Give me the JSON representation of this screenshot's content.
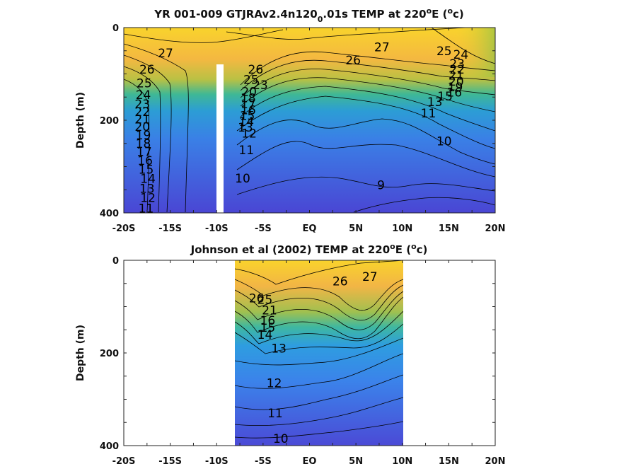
{
  "chart_data": [
    {
      "type": "contour",
      "title": "YR 001-009 GTJRAv2.4n120",
      "title_subscript": "0",
      "title_rest": ".01s TEMP at 220",
      "title_sup": "o",
      "title_end": "E (",
      "title_unit_sup": "o",
      "title_unit": "c)",
      "ylabel": "Depth (m)",
      "x_ticks": [
        "-20S",
        "-15S",
        "-10S",
        "-5S",
        "EQ",
        "5N",
        "10N",
        "15N",
        "20N"
      ],
      "y_ticks": [
        "0",
        "200",
        "400"
      ],
      "xlim": [
        -20,
        20
      ],
      "ylim": [
        0,
        400
      ],
      "y_reversed": true,
      "data_gap": {
        "lat": -9.7,
        "depth_from": 80,
        "depth_to": 400
      },
      "contour_labels": [
        {
          "text": "27",
          "lat": -15.5,
          "depth": 55
        },
        {
          "text": "26",
          "lat": -17.5,
          "depth": 90
        },
        {
          "text": "25",
          "lat": -17.8,
          "depth": 120
        },
        {
          "text": "24",
          "lat": -17.9,
          "depth": 145
        },
        {
          "text": "23",
          "lat": -18,
          "depth": 165
        },
        {
          "text": "22",
          "lat": -18,
          "depth": 182
        },
        {
          "text": "21",
          "lat": -18,
          "depth": 198
        },
        {
          "text": "20",
          "lat": -18,
          "depth": 214
        },
        {
          "text": "19",
          "lat": -17.9,
          "depth": 232
        },
        {
          "text": "18",
          "lat": -17.9,
          "depth": 250
        },
        {
          "text": "17",
          "lat": -17.8,
          "depth": 268
        },
        {
          "text": "16",
          "lat": -17.7,
          "depth": 287
        },
        {
          "text": "15",
          "lat": -17.6,
          "depth": 306
        },
        {
          "text": "14",
          "lat": -17.4,
          "depth": 326
        },
        {
          "text": "13",
          "lat": -17.5,
          "depth": 347
        },
        {
          "text": "12",
          "lat": -17.4,
          "depth": 367
        },
        {
          "text": "11",
          "lat": -17.6,
          "depth": 390
        },
        {
          "text": "26",
          "lat": -5.8,
          "depth": 90
        },
        {
          "text": "25",
          "lat": -6.3,
          "depth": 112
        },
        {
          "text": "23",
          "lat": -5.3,
          "depth": 124
        },
        {
          "text": "20",
          "lat": -6.5,
          "depth": 138
        },
        {
          "text": "18",
          "lat": -6.6,
          "depth": 152
        },
        {
          "text": "17",
          "lat": -6.6,
          "depth": 165
        },
        {
          "text": "16",
          "lat": -6.6,
          "depth": 178
        },
        {
          "text": "15",
          "lat": -6.7,
          "depth": 190
        },
        {
          "text": "14",
          "lat": -6.8,
          "depth": 203
        },
        {
          "text": "13",
          "lat": -6.9,
          "depth": 215
        },
        {
          "text": "12",
          "lat": -6.5,
          "depth": 228
        },
        {
          "text": "11",
          "lat": -6.8,
          "depth": 264
        },
        {
          "text": "10",
          "lat": -7.2,
          "depth": 325
        },
        {
          "text": "27",
          "lat": 7.8,
          "depth": 42
        },
        {
          "text": "26",
          "lat": 4.7,
          "depth": 70
        },
        {
          "text": "25",
          "lat": 14.5,
          "depth": 50
        },
        {
          "text": "24",
          "lat": 16.3,
          "depth": 58
        },
        {
          "text": "23",
          "lat": 15.9,
          "depth": 78
        },
        {
          "text": "22",
          "lat": 15.9,
          "depth": 90
        },
        {
          "text": "21",
          "lat": 15.8,
          "depth": 103
        },
        {
          "text": "20",
          "lat": 15.8,
          "depth": 116
        },
        {
          "text": "19",
          "lat": 15.7,
          "depth": 128
        },
        {
          "text": "16",
          "lat": 15.6,
          "depth": 140
        },
        {
          "text": "15",
          "lat": 14.6,
          "depth": 148
        },
        {
          "text": "13",
          "lat": 13.5,
          "depth": 160
        },
        {
          "text": "11",
          "lat": 12.8,
          "depth": 185
        },
        {
          "text": "10",
          "lat": 14.5,
          "depth": 245
        },
        {
          "text": "9",
          "lat": 7.7,
          "depth": 340
        }
      ]
    },
    {
      "type": "contour",
      "title": "Johnson et al (2002) TEMP at 220",
      "title_sup": "o",
      "title_end": "E (",
      "title_unit_sup": "o",
      "title_unit": "c)",
      "ylabel": "Depth (m)",
      "x_ticks": [
        "-20S",
        "-15S",
        "-10S",
        "-5S",
        "EQ",
        "5N",
        "10N",
        "15N",
        "20N"
      ],
      "y_ticks": [
        "0",
        "200",
        "400"
      ],
      "xlim": [
        -20,
        20
      ],
      "ylim": [
        0,
        400
      ],
      "y_reversed": true,
      "data_range_lat": [
        -8,
        10
      ],
      "contour_labels": [
        {
          "text": "27",
          "lat": 6.5,
          "depth": 35
        },
        {
          "text": "26",
          "lat": 3.3,
          "depth": 45
        },
        {
          "text": "26",
          "lat": -5.7,
          "depth": 82
        },
        {
          "text": "25",
          "lat": -4.8,
          "depth": 85
        },
        {
          "text": "21",
          "lat": -4.3,
          "depth": 108
        },
        {
          "text": "16",
          "lat": -4.5,
          "depth": 130
        },
        {
          "text": "15",
          "lat": -4.5,
          "depth": 145
        },
        {
          "text": "14",
          "lat": -4.8,
          "depth": 160
        },
        {
          "text": "13",
          "lat": -3.3,
          "depth": 190
        },
        {
          "text": "12",
          "lat": -3.8,
          "depth": 265
        },
        {
          "text": "11",
          "lat": -3.7,
          "depth": 330
        },
        {
          "text": "10",
          "lat": -3.1,
          "depth": 385
        }
      ]
    }
  ]
}
